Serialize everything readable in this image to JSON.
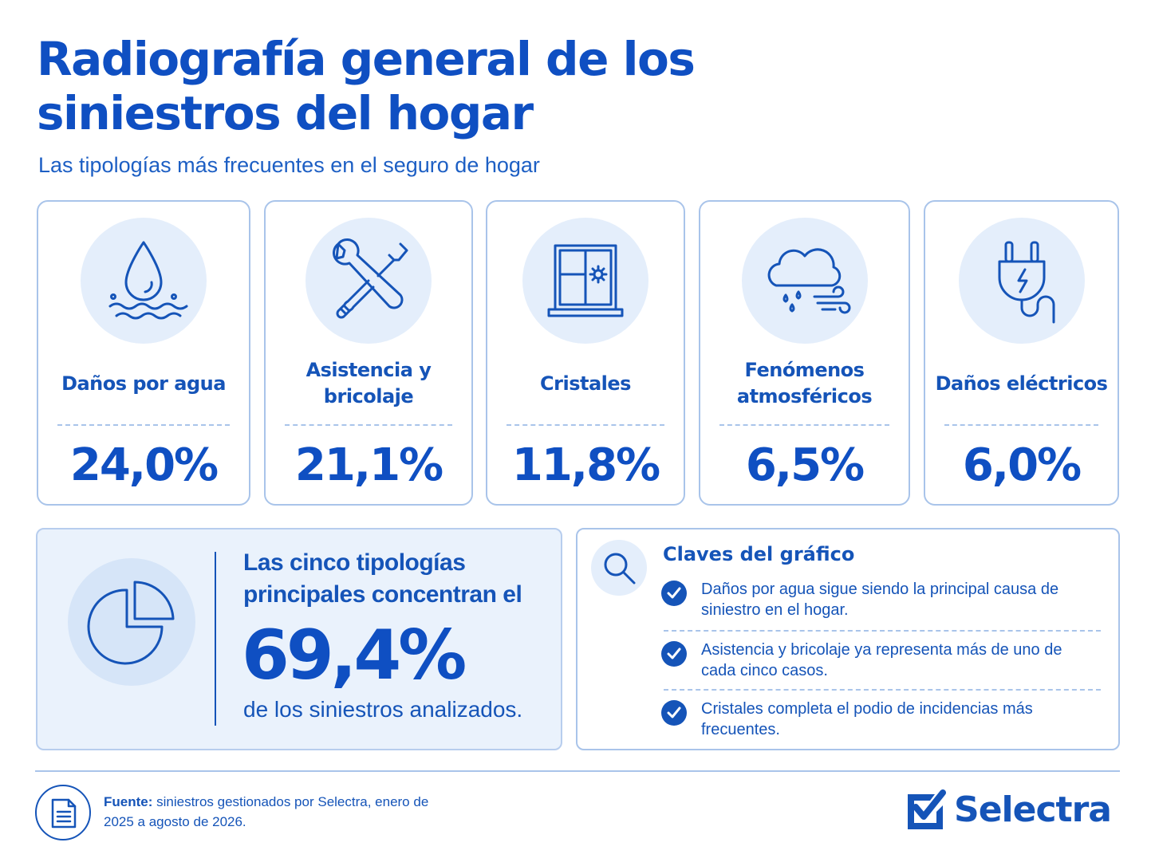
{
  "header": {
    "title": "Radiografía general de los siniestros del hogar",
    "subtitle": "Las tipologías más frecuentes en el seguro de hogar"
  },
  "cards": [
    {
      "label": "Daños por agua",
      "value": "24,0%",
      "icon": "water-drop-icon"
    },
    {
      "label": "Asistencia y bricolaje",
      "value": "21,1%",
      "icon": "wrench-screwdriver-icon"
    },
    {
      "label": "Cristales",
      "value": "11,8%",
      "icon": "window-icon"
    },
    {
      "label": "Fenómenos atmosféricos",
      "value": "6,5%",
      "icon": "cloud-rain-wind-icon"
    },
    {
      "label": "Daños eléctricos",
      "value": "6,0%",
      "icon": "plug-icon"
    }
  ],
  "summary": {
    "lead": "Las cinco tipologías principales concentran el",
    "value": "69,4%",
    "tail": "de los siniestros analizados.",
    "icon": "pie-chart-icon"
  },
  "keys": {
    "title": "Claves del gráfico",
    "icon": "magnifier-icon",
    "items": [
      {
        "text": "Daños por agua sigue siendo la principal causa de siniestro en el hogar."
      },
      {
        "text": "Asistencia y bricolaje ya representa más de uno de cada cinco casos."
      },
      {
        "text": "Cristales completa el podio de incidencias más frecuentes."
      }
    ]
  },
  "footer": {
    "source_label": "Fuente:",
    "source_text": "siniestros gestionados por Selectra, enero de 2025 a agosto de 2026.",
    "brand": "Selectra",
    "icon": "document-icon"
  },
  "colors": {
    "primary": "#1554b8",
    "accent": "#0f4fc2",
    "light": "#e4eefb",
    "border": "#a9c4ea"
  }
}
